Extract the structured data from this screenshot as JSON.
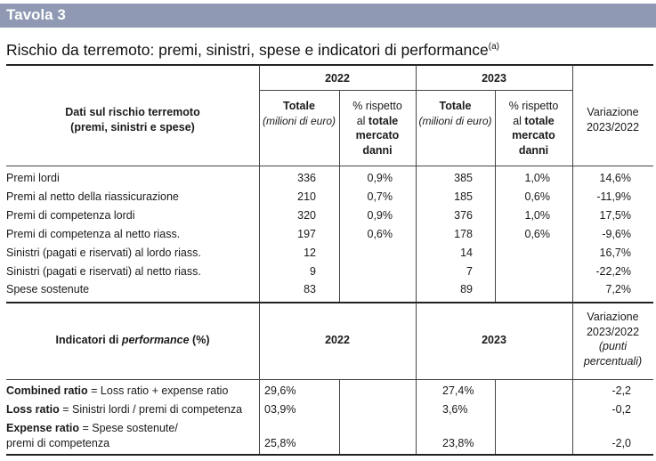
{
  "tavola": "Tavola 3",
  "title": "Rischio da terremoto: premi, sinistri, spese e indicatori di performance",
  "title_note": "(a)",
  "header": {
    "year_a": "2022",
    "year_b": "2023",
    "rowhead_line1": "Dati sul rischio terremoto",
    "rowhead_line2": "(premi, sinistri e spese)",
    "totale": "Totale",
    "totale_unit": "(milioni di euro)",
    "pct_line1": "% rispetto",
    "pct_line2_pre": "al ",
    "pct_line2_bold": "totale",
    "pct_line3": "mercato",
    "pct_line4": "danni",
    "variation_line1": "Variazione",
    "variation_line2": "2023/2022"
  },
  "rows": [
    {
      "label": "Premi lordi",
      "tot2022": "336",
      "pct2022": "0,9%",
      "tot2023": "385",
      "pct2023": "1,0%",
      "var": "14,6%"
    },
    {
      "label": "Premi al netto della riassicurazione",
      "tot2022": "210",
      "pct2022": "0,7%",
      "tot2023": "185",
      "pct2023": "0,6%",
      "var": "-11,9%"
    },
    {
      "label": "Premi di competenza lordi",
      "tot2022": "320",
      "pct2022": "0,9%",
      "tot2023": "376",
      "pct2023": "1,0%",
      "var": "17,5%"
    },
    {
      "label": "Premi di competenza al netto riass.",
      "tot2022": "197",
      "pct2022": "0,6%",
      "tot2023": "178",
      "pct2023": "0,6%",
      "var": "-9,6%"
    },
    {
      "label": "Sinistri (pagati e riservati) al lordo riass.",
      "tot2022": "12",
      "pct2022": "",
      "tot2023": "14",
      "pct2023": "",
      "var": "16,7%"
    },
    {
      "label": "Sinistri (pagati e riservati) al netto riass.",
      "tot2022": "9",
      "pct2022": "",
      "tot2023": "7",
      "pct2023": "",
      "var": "-22,2%"
    },
    {
      "label": "Spese sostenute",
      "tot2022": "83",
      "pct2022": "",
      "tot2023": "89",
      "pct2023": "",
      "var": "7,2%"
    }
  ],
  "perf_header": {
    "label_pre": "Indicatori di ",
    "label_italic": "performance",
    "label_post": " (%)",
    "year_a": "2022",
    "year_b": "2023",
    "var_line1": "Variazione",
    "var_line2": "2023/2022",
    "var_line3": "(punti",
    "var_line4": "percentuali)"
  },
  "perf_rows": [
    {
      "name": "Combined ratio",
      "formula": " = Loss ratio + expense ratio",
      "v2022": "29,6%",
      "v2023": "27,4%",
      "var": "-2,2"
    },
    {
      "name": "Loss ratio",
      "formula": " = Sinistri lordi / premi di competenza",
      "v2022": "03,9%",
      "v2023": "3,6%",
      "var": "-0,2"
    },
    {
      "name": "Expense ratio",
      "formula": " = Spese sostenute/",
      "formula2": "premi di competenza",
      "v2022": "25,8%",
      "v2023": "23,8%",
      "var": "-2,0"
    }
  ]
}
